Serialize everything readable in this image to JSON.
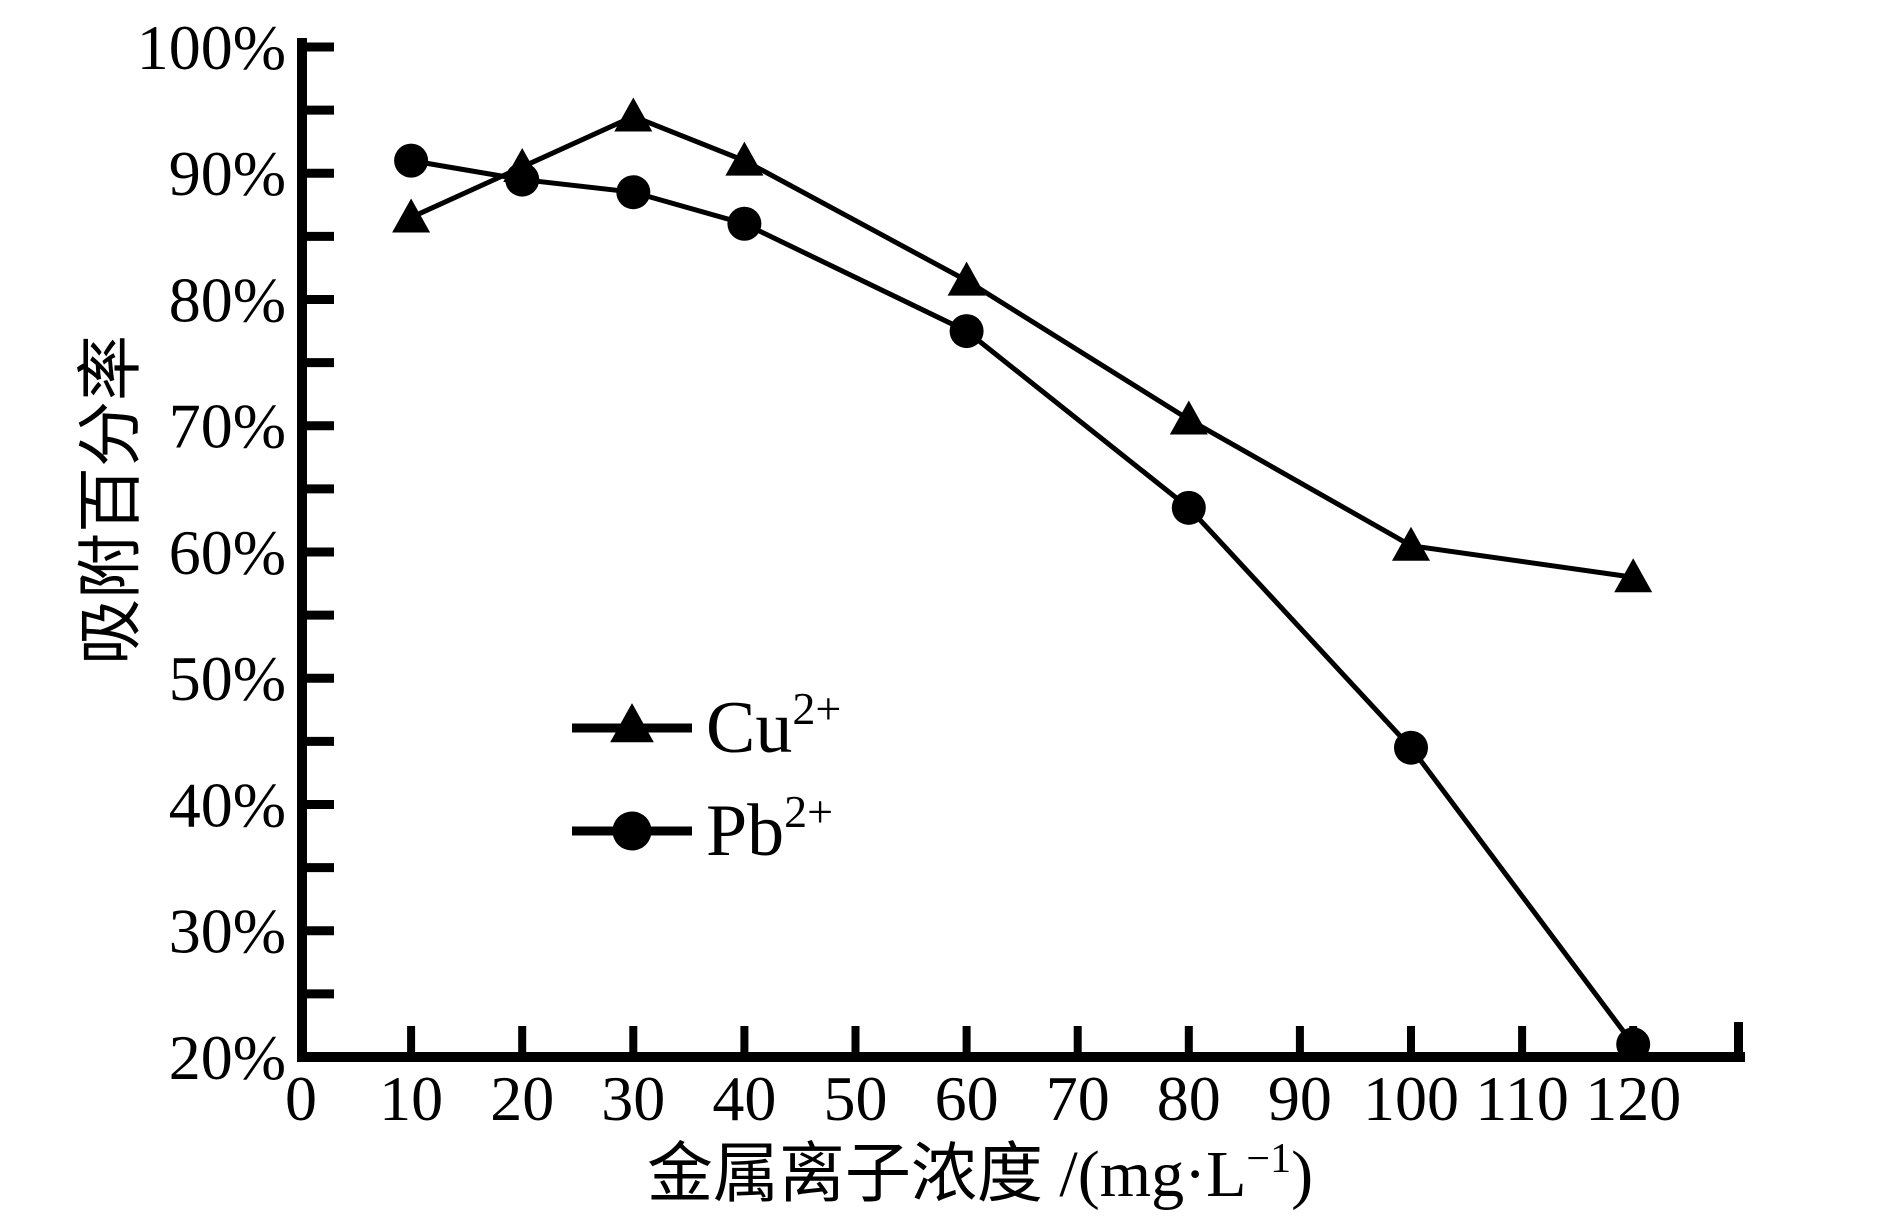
{
  "figure": {
    "background_color": "#ffffff",
    "ink_color": "#000000"
  },
  "chart_data": {
    "type": "line",
    "title": "",
    "xlabel": "金属离子浓度 /(mg·L⁻¹)",
    "xlabel_parts": {
      "pre": "金属离子浓度 /(mg·L",
      "sup": "−1",
      "post": ")"
    },
    "ylabel": "吸附百分率",
    "xlim": [
      0,
      130
    ],
    "ylim": [
      20,
      100
    ],
    "x_ticks": [
      0,
      10,
      20,
      30,
      40,
      50,
      60,
      70,
      80,
      90,
      100,
      110,
      120
    ],
    "y_ticks": [
      20,
      30,
      40,
      50,
      60,
      70,
      80,
      90,
      100
    ],
    "y_minor_tick_step": 5,
    "y_tick_suffix": "%",
    "grid": false,
    "legend_position": "inside-center-left",
    "series": [
      {
        "name": "Cu2+",
        "label_base": "Cu",
        "label_sup": "2+",
        "marker": "triangle",
        "color": "#000000",
        "x": [
          10,
          20,
          30,
          40,
          60,
          80,
          100,
          120
        ],
        "y": [
          86.5,
          90.5,
          94.5,
          91,
          81.5,
          70.5,
          60.5,
          58
        ]
      },
      {
        "name": "Pb2+",
        "label_base": "Pb",
        "label_sup": "2+",
        "marker": "circle",
        "color": "#000000",
        "x": [
          10,
          20,
          30,
          40,
          60,
          80,
          100,
          120
        ],
        "y": [
          91,
          89.5,
          88.5,
          86,
          77.5,
          63.5,
          44.5,
          21
        ]
      }
    ]
  }
}
